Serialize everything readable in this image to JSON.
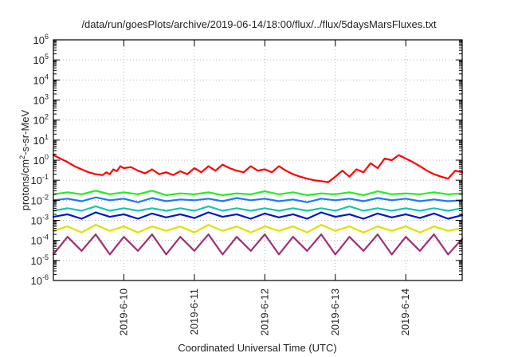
{
  "chart_data": {
    "type": "line",
    "title": "/data/run/goesPlots/archive/2019-06-14/18:00/flux/../flux/5daysMarsFluxes.txt",
    "xlabel": "Coordinated Universal Time (UTC)",
    "ylabel": "protons/cm²-s-sr-MeV",
    "ylabel_parts": [
      "protons/cm",
      "2",
      "-s-sr-MeV"
    ],
    "yscale": "log",
    "ylim": [
      1e-06,
      1000000.0
    ],
    "xlim": [
      0.0,
      5.8
    ],
    "grid": true,
    "legend": "none",
    "y_ticks": [
      {
        "value": 1e-06,
        "base": "10",
        "exp": "-6"
      },
      {
        "value": 1e-05,
        "base": "10",
        "exp": "-5"
      },
      {
        "value": 0.0001,
        "base": "10",
        "exp": "-4"
      },
      {
        "value": 0.001,
        "base": "10",
        "exp": "-3"
      },
      {
        "value": 0.01,
        "base": "10",
        "exp": "-2"
      },
      {
        "value": 0.1,
        "base": "10",
        "exp": "-1"
      },
      {
        "value": 1,
        "base": "10",
        "exp": "0"
      },
      {
        "value": 10.0,
        "base": "10",
        "exp": "1"
      },
      {
        "value": 100.0,
        "base": "10",
        "exp": "2"
      },
      {
        "value": 1000.0,
        "base": "10",
        "exp": "3"
      },
      {
        "value": 10000.0,
        "base": "10",
        "exp": "4"
      },
      {
        "value": 100000.0,
        "base": "10",
        "exp": "5"
      },
      {
        "value": 1000000.0,
        "base": "10",
        "exp": "6"
      }
    ],
    "x_ticks": [
      {
        "value": 1,
        "label": "2019-6-10"
      },
      {
        "value": 2,
        "label": "2019-6-11"
      },
      {
        "value": 3,
        "label": "2019-6-12"
      },
      {
        "value": 4,
        "label": "2019-6-13"
      },
      {
        "value": 5,
        "label": "2019-6-14"
      }
    ],
    "series": [
      {
        "color": "#ff0000",
        "x": [
          0.0,
          0.1,
          0.2,
          0.3,
          0.4,
          0.5,
          0.6,
          0.7,
          0.75,
          0.8,
          0.85,
          0.9,
          0.95,
          1.0,
          1.1,
          1.2,
          1.3,
          1.4,
          1.5,
          1.6,
          1.7,
          1.8,
          1.9,
          2.0,
          2.1,
          2.2,
          2.3,
          2.4,
          2.5,
          2.6,
          2.7,
          2.8,
          2.9,
          3.0,
          3.1,
          3.2,
          3.3,
          3.4,
          3.5,
          3.6,
          3.7,
          3.8,
          3.9,
          4.0,
          4.1,
          4.2,
          4.3,
          4.4,
          4.5,
          4.6,
          4.7,
          4.8,
          4.9,
          5.0,
          5.1,
          5.2,
          5.3,
          5.4,
          5.5,
          5.6,
          5.7,
          5.8
        ],
        "y": [
          1.8,
          1.2,
          0.8,
          0.5,
          0.35,
          0.25,
          0.2,
          0.18,
          0.25,
          0.2,
          0.35,
          0.28,
          0.5,
          0.4,
          0.45,
          0.3,
          0.22,
          0.35,
          0.2,
          0.25,
          0.18,
          0.28,
          0.2,
          0.4,
          0.25,
          0.5,
          0.3,
          0.6,
          0.4,
          0.3,
          0.25,
          0.5,
          0.3,
          0.35,
          0.25,
          0.5,
          0.3,
          0.2,
          0.15,
          0.12,
          0.1,
          0.09,
          0.08,
          0.15,
          0.3,
          0.15,
          0.35,
          0.25,
          0.7,
          0.4,
          1.2,
          1.0,
          1.8,
          1.2,
          0.8,
          0.5,
          0.3,
          0.2,
          0.15,
          0.12,
          0.3,
          0.25
        ]
      },
      {
        "color": "#22ee22",
        "x": [
          0.0,
          0.2,
          0.4,
          0.6,
          0.8,
          1.0,
          1.2,
          1.4,
          1.6,
          1.8,
          2.0,
          2.2,
          2.4,
          2.6,
          2.8,
          3.0,
          3.2,
          3.4,
          3.6,
          3.8,
          4.0,
          4.2,
          4.4,
          4.6,
          4.8,
          5.0,
          5.2,
          5.4,
          5.6,
          5.8
        ],
        "y": [
          0.02,
          0.025,
          0.02,
          0.03,
          0.02,
          0.025,
          0.02,
          0.03,
          0.018,
          0.022,
          0.02,
          0.025,
          0.018,
          0.022,
          0.02,
          0.028,
          0.02,
          0.025,
          0.018,
          0.022,
          0.02,
          0.025,
          0.018,
          0.028,
          0.02,
          0.022,
          0.02,
          0.025,
          0.02,
          0.022
        ]
      },
      {
        "color": "#1f77ff",
        "x": [
          0.0,
          0.2,
          0.4,
          0.6,
          0.8,
          1.0,
          1.2,
          1.4,
          1.6,
          1.8,
          2.0,
          2.2,
          2.4,
          2.6,
          2.8,
          3.0,
          3.2,
          3.4,
          3.6,
          3.8,
          4.0,
          4.2,
          4.4,
          4.6,
          4.8,
          5.0,
          5.2,
          5.4,
          5.6,
          5.8
        ],
        "y": [
          0.01,
          0.012,
          0.009,
          0.014,
          0.01,
          0.012,
          0.008,
          0.013,
          0.009,
          0.011,
          0.01,
          0.012,
          0.009,
          0.013,
          0.01,
          0.012,
          0.009,
          0.011,
          0.008,
          0.012,
          0.01,
          0.012,
          0.009,
          0.013,
          0.01,
          0.012,
          0.009,
          0.011,
          0.009,
          0.01
        ]
      },
      {
        "color": "#10c8b0",
        "x": [
          0.0,
          0.2,
          0.4,
          0.6,
          0.8,
          1.0,
          1.2,
          1.4,
          1.6,
          1.8,
          2.0,
          2.2,
          2.4,
          2.6,
          2.8,
          3.0,
          3.2,
          3.4,
          3.6,
          3.8,
          4.0,
          4.2,
          4.4,
          4.6,
          4.8,
          5.0,
          5.2,
          5.4,
          5.6,
          5.8
        ],
        "y": [
          0.003,
          0.004,
          0.003,
          0.005,
          0.003,
          0.004,
          0.003,
          0.004,
          0.003,
          0.004,
          0.003,
          0.005,
          0.003,
          0.004,
          0.003,
          0.004,
          0.003,
          0.004,
          0.003,
          0.004,
          0.003,
          0.005,
          0.003,
          0.004,
          0.003,
          0.004,
          0.003,
          0.004,
          0.003,
          0.004
        ]
      },
      {
        "color": "#0018c0",
        "x": [
          0.0,
          0.2,
          0.4,
          0.6,
          0.8,
          1.0,
          1.2,
          1.4,
          1.6,
          1.8,
          2.0,
          2.2,
          2.4,
          2.6,
          2.8,
          3.0,
          3.2,
          3.4,
          3.6,
          3.8,
          4.0,
          4.2,
          4.4,
          4.6,
          4.8,
          5.0,
          5.2,
          5.4,
          5.6,
          5.8
        ],
        "y": [
          0.0015,
          0.002,
          0.0012,
          0.0025,
          0.0015,
          0.002,
          0.0012,
          0.0022,
          0.0014,
          0.002,
          0.0013,
          0.0025,
          0.0015,
          0.002,
          0.0012,
          0.0022,
          0.0014,
          0.002,
          0.0012,
          0.0025,
          0.0015,
          0.002,
          0.0012,
          0.0022,
          0.0014,
          0.002,
          0.0013,
          0.0022,
          0.0012,
          0.0018
        ]
      },
      {
        "color": "#e0e000",
        "x": [
          0.0,
          0.2,
          0.4,
          0.6,
          0.8,
          1.0,
          1.2,
          1.4,
          1.6,
          1.8,
          2.0,
          2.2,
          2.4,
          2.6,
          2.8,
          3.0,
          3.2,
          3.4,
          3.6,
          3.8,
          4.0,
          4.2,
          4.4,
          4.6,
          4.8,
          5.0,
          5.2,
          5.4,
          5.6,
          5.8
        ],
        "y": [
          0.0003,
          0.0005,
          0.00025,
          0.0006,
          0.0003,
          0.0005,
          0.00025,
          0.0005,
          0.0003,
          0.0005,
          0.00025,
          0.0006,
          0.0003,
          0.0005,
          0.00025,
          0.0005,
          0.0003,
          0.0005,
          0.00025,
          0.0006,
          0.0003,
          0.0005,
          0.00025,
          0.0005,
          0.0003,
          0.0005,
          0.00025,
          0.0005,
          0.0003,
          0.0004
        ]
      },
      {
        "color": "#a03070",
        "x": [
          0.0,
          0.2,
          0.4,
          0.6,
          0.8,
          1.0,
          1.2,
          1.4,
          1.6,
          1.8,
          2.0,
          2.2,
          2.4,
          2.6,
          2.8,
          3.0,
          3.2,
          3.4,
          3.6,
          3.8,
          4.0,
          4.2,
          4.4,
          4.6,
          4.8,
          5.0,
          5.2,
          5.4,
          5.6,
          5.8
        ],
        "y": [
          2e-05,
          0.00015,
          3e-05,
          0.0002,
          2e-05,
          0.00015,
          3e-05,
          0.0002,
          2e-05,
          0.00015,
          3e-05,
          0.0002,
          2e-05,
          0.00015,
          3e-05,
          0.0002,
          2e-05,
          0.00015,
          3e-05,
          0.0002,
          2e-05,
          0.00015,
          3e-05,
          0.0002,
          2e-05,
          0.00015,
          3e-05,
          0.0002,
          2e-05,
          0.00012
        ]
      }
    ]
  }
}
